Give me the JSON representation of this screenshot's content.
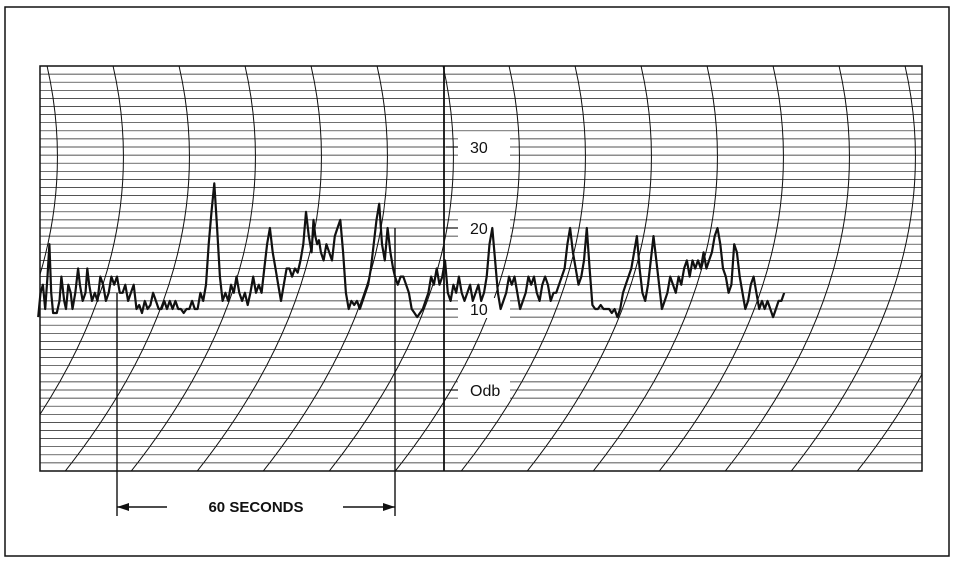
{
  "colors": {
    "ink": "#111111",
    "paper": "#ffffff",
    "grid": "#1a1a1a"
  },
  "chart_data": {
    "type": "line",
    "title": "",
    "xlabel": "",
    "ylabel": "",
    "y_unit": "db",
    "ylim": [
      -10,
      40
    ],
    "yticks": [
      {
        "value": 30,
        "label": "30"
      },
      {
        "value": 20,
        "label": "20"
      },
      {
        "value": 10,
        "label": "10"
      },
      {
        "value": 0,
        "label": "Odb"
      }
    ],
    "grid": true,
    "time_marker": {
      "label": "60 SECONDS",
      "start_s": 0,
      "end_s": 60
    },
    "series": [
      {
        "name": "",
        "points": [
          [
            -17,
            9
          ],
          [
            -16.5,
            12
          ],
          [
            -16,
            13
          ],
          [
            -15.5,
            10
          ],
          [
            -15,
            14
          ],
          [
            -14.6,
            18
          ],
          [
            -14.2,
            12
          ],
          [
            -13.8,
            9.5
          ],
          [
            -13,
            9.5
          ],
          [
            -12.4,
            11
          ],
          [
            -12,
            14
          ],
          [
            -11.4,
            11
          ],
          [
            -11,
            10
          ],
          [
            -10.5,
            13
          ],
          [
            -10,
            12
          ],
          [
            -9.6,
            10
          ],
          [
            -9,
            12
          ],
          [
            -8.4,
            15
          ],
          [
            -8,
            13
          ],
          [
            -7.4,
            11
          ],
          [
            -6.8,
            12
          ],
          [
            -6.4,
            15
          ],
          [
            -6,
            13
          ],
          [
            -5.4,
            11
          ],
          [
            -4.8,
            12
          ],
          [
            -4.2,
            11
          ],
          [
            -3.6,
            14
          ],
          [
            -3,
            13
          ],
          [
            -2.4,
            11
          ],
          [
            -1.8,
            12
          ],
          [
            -1.2,
            14
          ],
          [
            -0.6,
            13
          ],
          [
            0,
            14
          ],
          [
            0.6,
            12
          ],
          [
            1.2,
            12
          ],
          [
            1.8,
            13
          ],
          [
            2.4,
            11
          ],
          [
            3,
            12
          ],
          [
            3.6,
            13
          ],
          [
            4.2,
            10
          ],
          [
            4.8,
            10.5
          ],
          [
            5.4,
            9.5
          ],
          [
            6,
            11
          ],
          [
            6.6,
            10
          ],
          [
            7.2,
            10.5
          ],
          [
            7.8,
            12
          ],
          [
            8.4,
            11
          ],
          [
            9,
            10
          ],
          [
            9.6,
            10
          ],
          [
            10.2,
            11
          ],
          [
            10.8,
            10
          ],
          [
            11.4,
            11
          ],
          [
            12,
            10
          ],
          [
            12.6,
            11
          ],
          [
            13.2,
            10
          ],
          [
            13.8,
            10
          ],
          [
            14.4,
            9.5
          ],
          [
            15,
            10
          ],
          [
            15.6,
            10
          ],
          [
            16.2,
            11
          ],
          [
            16.8,
            10
          ],
          [
            17.4,
            10
          ],
          [
            18,
            12
          ],
          [
            18.6,
            11
          ],
          [
            19.2,
            13
          ],
          [
            19.8,
            18
          ],
          [
            20.4,
            22
          ],
          [
            21,
            25.5
          ],
          [
            21.6,
            20
          ],
          [
            22.2,
            14
          ],
          [
            22.8,
            11
          ],
          [
            23.4,
            12
          ],
          [
            24,
            11
          ],
          [
            24.6,
            13
          ],
          [
            25.2,
            12
          ],
          [
            25.8,
            14
          ],
          [
            26.4,
            12
          ],
          [
            27,
            11
          ],
          [
            27.6,
            12
          ],
          [
            28.2,
            10.5
          ],
          [
            28.8,
            12
          ],
          [
            29.4,
            14
          ],
          [
            30,
            12
          ],
          [
            30.6,
            13
          ],
          [
            31.2,
            12
          ],
          [
            31.8,
            15
          ],
          [
            32.4,
            18
          ],
          [
            33,
            20
          ],
          [
            33.6,
            17
          ],
          [
            34.2,
            15
          ],
          [
            34.8,
            13
          ],
          [
            35.4,
            11
          ],
          [
            36,
            13
          ],
          [
            36.6,
            15
          ],
          [
            37.2,
            15
          ],
          [
            37.8,
            14
          ],
          [
            38.4,
            15
          ],
          [
            39,
            14.5
          ],
          [
            39.6,
            16
          ],
          [
            40.2,
            18
          ],
          [
            40.8,
            22
          ],
          [
            41.4,
            19
          ],
          [
            42,
            17
          ],
          [
            42.4,
            21
          ],
          [
            42.8,
            19
          ],
          [
            43.2,
            18
          ],
          [
            43.6,
            18.5
          ],
          [
            44,
            17
          ],
          [
            44.6,
            16
          ],
          [
            45.2,
            18
          ],
          [
            45.8,
            17
          ],
          [
            46.4,
            16
          ],
          [
            47,
            19
          ],
          [
            47.6,
            20
          ],
          [
            48.2,
            21
          ],
          [
            48.8,
            17
          ],
          [
            49.4,
            12
          ],
          [
            50,
            10
          ],
          [
            50.6,
            11
          ],
          [
            51.2,
            10.5
          ],
          [
            51.8,
            11
          ],
          [
            52.4,
            10
          ],
          [
            53,
            11
          ],
          [
            53.6,
            12
          ],
          [
            54.2,
            13
          ],
          [
            54.8,
            15
          ],
          [
            55.4,
            18
          ],
          [
            56,
            21
          ],
          [
            56.6,
            23
          ],
          [
            57.2,
            18
          ],
          [
            57.8,
            16
          ],
          [
            58.4,
            20
          ],
          [
            59,
            17
          ],
          [
            59.6,
            15
          ],
          [
            60,
            14
          ],
          [
            60.6,
            13
          ],
          [
            61.2,
            14
          ],
          [
            61.8,
            14
          ],
          [
            62.4,
            13
          ],
          [
            63,
            12
          ],
          [
            63.6,
            10
          ],
          [
            64.2,
            9.5
          ],
          [
            64.8,
            9
          ],
          [
            65.4,
            9.5
          ],
          [
            66,
            10
          ],
          [
            66.6,
            11
          ],
          [
            67.2,
            12
          ],
          [
            67.8,
            14
          ],
          [
            68.4,
            13
          ],
          [
            69,
            15
          ],
          [
            69.6,
            13
          ],
          [
            70.2,
            14
          ],
          [
            70.8,
            16
          ],
          [
            71.4,
            12
          ],
          [
            72,
            11
          ],
          [
            72.6,
            13
          ],
          [
            73.2,
            12
          ],
          [
            73.8,
            14
          ],
          [
            74.4,
            12
          ],
          [
            75,
            11
          ],
          [
            75.6,
            12
          ],
          [
            76.2,
            13
          ],
          [
            76.8,
            11
          ],
          [
            77.4,
            12
          ],
          [
            78,
            13
          ],
          [
            78.6,
            11
          ],
          [
            79.2,
            12
          ],
          [
            79.8,
            14
          ],
          [
            80.4,
            18
          ],
          [
            81,
            20
          ],
          [
            81.6,
            16
          ],
          [
            82.2,
            12
          ],
          [
            82.8,
            10
          ],
          [
            83.4,
            11
          ],
          [
            84,
            12
          ],
          [
            84.6,
            14
          ],
          [
            85.2,
            13
          ],
          [
            85.8,
            14
          ],
          [
            86.4,
            12
          ],
          [
            87,
            10
          ],
          [
            87.6,
            11
          ],
          [
            88.2,
            12
          ],
          [
            88.8,
            14
          ],
          [
            89.4,
            13
          ],
          [
            90,
            14
          ],
          [
            90.6,
            12
          ],
          [
            91.2,
            11
          ],
          [
            91.8,
            13
          ],
          [
            92.4,
            14
          ],
          [
            93,
            13
          ],
          [
            93.6,
            11
          ],
          [
            94.2,
            12
          ],
          [
            94.8,
            12
          ],
          [
            95.4,
            13
          ],
          [
            96,
            14
          ],
          [
            96.6,
            15
          ],
          [
            97.2,
            18
          ],
          [
            97.8,
            20
          ],
          [
            98.4,
            17
          ],
          [
            99,
            15
          ],
          [
            99.6,
            13
          ],
          [
            100.2,
            14
          ],
          [
            100.8,
            16
          ],
          [
            101.4,
            20
          ],
          [
            102,
            15
          ],
          [
            102.6,
            10.5
          ],
          [
            103.2,
            10
          ],
          [
            103.8,
            10
          ],
          [
            104.4,
            10.5
          ],
          [
            105,
            10
          ],
          [
            105.6,
            10
          ],
          [
            106.2,
            10
          ],
          [
            106.8,
            9.5
          ],
          [
            107.4,
            10
          ],
          [
            108,
            9
          ],
          [
            108.6,
            10
          ],
          [
            109.2,
            12
          ],
          [
            109.8,
            13
          ],
          [
            110.4,
            14
          ],
          [
            111,
            15
          ],
          [
            111.6,
            17
          ],
          [
            112.2,
            19
          ],
          [
            112.8,
            15
          ],
          [
            113.4,
            12
          ],
          [
            114,
            11
          ],
          [
            114.6,
            13
          ],
          [
            115.2,
            16
          ],
          [
            115.8,
            19
          ],
          [
            116.4,
            16
          ],
          [
            117,
            13
          ],
          [
            117.6,
            10
          ],
          [
            118.2,
            11
          ],
          [
            118.8,
            12
          ],
          [
            119.4,
            14
          ],
          [
            120,
            13
          ],
          [
            120.6,
            12
          ],
          [
            121.2,
            14
          ],
          [
            121.8,
            13
          ],
          [
            122.4,
            15
          ],
          [
            123,
            16
          ],
          [
            123.6,
            14
          ],
          [
            124.2,
            16
          ],
          [
            124.8,
            15
          ],
          [
            125.4,
            16
          ],
          [
            126,
            15
          ],
          [
            126.6,
            17
          ],
          [
            127.2,
            15
          ],
          [
            127.8,
            16
          ],
          [
            128.4,
            17
          ],
          [
            129,
            19
          ],
          [
            129.6,
            20
          ],
          [
            130.2,
            18
          ],
          [
            130.8,
            15
          ],
          [
            131.4,
            14
          ],
          [
            132,
            12
          ],
          [
            132.6,
            13
          ],
          [
            133.2,
            18
          ],
          [
            133.8,
            17
          ],
          [
            134.4,
            14
          ],
          [
            135,
            12
          ],
          [
            135.6,
            10
          ],
          [
            136.2,
            11
          ],
          [
            136.8,
            13
          ],
          [
            137.4,
            14
          ],
          [
            138,
            12
          ],
          [
            138.6,
            10
          ],
          [
            139.2,
            11
          ],
          [
            139.8,
            10
          ],
          [
            140.4,
            11
          ],
          [
            141,
            10
          ],
          [
            141.6,
            9
          ],
          [
            142.2,
            10
          ],
          [
            142.8,
            11
          ],
          [
            143.4,
            11
          ],
          [
            144,
            12
          ]
        ]
      }
    ]
  }
}
